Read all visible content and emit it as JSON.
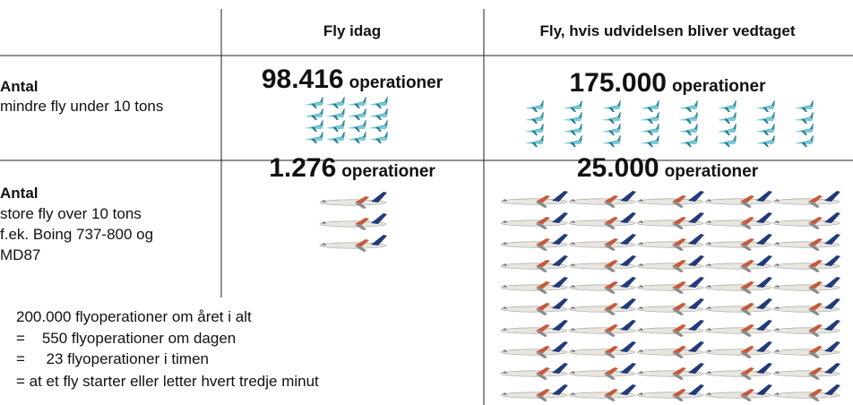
{
  "header": {
    "col1": "Fly idag",
    "col2": "Fly, hvis udvidelsen bliver vedtaget"
  },
  "rows": [
    {
      "label": "Antal",
      "desc": [
        "mindre fly under 10 tons"
      ],
      "today": {
        "number": "98.416",
        "unit": "operationer"
      },
      "expanded": {
        "number": "175.000",
        "unit": "operationer"
      }
    },
    {
      "label": "Antal",
      "desc": [
        "store fly over 10 tons",
        "f.ek. Boing 737-800 og",
        "MD87"
      ],
      "today": {
        "number": "1.276",
        "unit": "operationer"
      },
      "expanded": {
        "number": "25.000",
        "unit": "operationer"
      }
    }
  ],
  "notes": [
    "200.000 flyoperationer om året i alt",
    "=    550 flyoperationer om dagen",
    "=     23 flyoperationer i timen",
    "= at et fly starter eller letter hvert tredje minut"
  ]
}
